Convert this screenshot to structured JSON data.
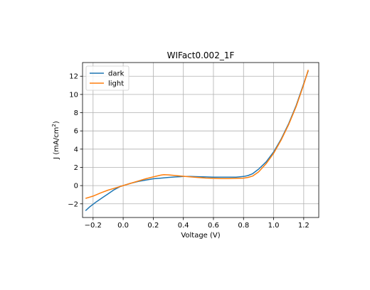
{
  "chart_data": {
    "type": "line",
    "title": "WIFact0.002_1F",
    "xlabel": "Voltage (V)",
    "ylabel_main": "J (mA/cm",
    "ylabel_sup": "2",
    "ylabel_tail": ")",
    "xlim": [
      -0.27,
      1.3
    ],
    "ylim": [
      -3.5,
      13.5
    ],
    "xticks": [
      -0.2,
      0.0,
      0.2,
      0.4,
      0.6,
      0.8,
      1.0,
      1.2
    ],
    "xtick_labels": [
      "−0.2",
      "0.0",
      "0.2",
      "0.4",
      "0.6",
      "0.8",
      "1.0",
      "1.2"
    ],
    "yticks": [
      -2,
      0,
      2,
      4,
      6,
      8,
      10,
      12
    ],
    "ytick_labels": [
      "−2",
      "0",
      "2",
      "4",
      "6",
      "8",
      "10",
      "12"
    ],
    "grid": true,
    "legend_position": "upper left",
    "series": [
      {
        "name": "dark",
        "color": "#1f77b4",
        "x": [
          -0.25,
          -0.22,
          -0.18,
          -0.14,
          -0.1,
          -0.06,
          -0.02,
          0.0,
          0.05,
          0.1,
          0.15,
          0.2,
          0.25,
          0.3,
          0.35,
          0.4,
          0.45,
          0.5,
          0.55,
          0.6,
          0.65,
          0.7,
          0.75,
          0.8,
          0.83,
          0.86,
          0.9,
          0.95,
          1.0,
          1.05,
          1.1,
          1.15,
          1.2,
          1.23
        ],
        "y": [
          -2.75,
          -2.3,
          -1.8,
          -1.35,
          -0.9,
          -0.45,
          -0.1,
          0.0,
          0.25,
          0.45,
          0.6,
          0.75,
          0.82,
          0.9,
          0.95,
          1.0,
          1.0,
          0.98,
          0.95,
          0.93,
          0.92,
          0.92,
          0.93,
          1.0,
          1.1,
          1.3,
          1.8,
          2.6,
          3.7,
          5.1,
          6.8,
          8.8,
          11.2,
          12.6
        ]
      },
      {
        "name": "light",
        "color": "#ff7f0e",
        "x": [
          -0.25,
          -0.2,
          -0.15,
          -0.1,
          -0.05,
          0.0,
          0.05,
          0.1,
          0.15,
          0.2,
          0.25,
          0.27,
          0.3,
          0.35,
          0.4,
          0.45,
          0.5,
          0.55,
          0.6,
          0.65,
          0.7,
          0.75,
          0.8,
          0.83,
          0.86,
          0.9,
          0.95,
          1.0,
          1.05,
          1.1,
          1.15,
          1.2,
          1.23
        ],
        "y": [
          -1.4,
          -1.15,
          -0.8,
          -0.5,
          -0.25,
          0.0,
          0.25,
          0.5,
          0.75,
          0.95,
          1.15,
          1.2,
          1.18,
          1.1,
          1.02,
          0.95,
          0.88,
          0.83,
          0.8,
          0.77,
          0.77,
          0.8,
          0.82,
          0.9,
          1.05,
          1.5,
          2.4,
          3.55,
          5.0,
          6.7,
          8.7,
          11.1,
          12.7
        ]
      }
    ]
  }
}
